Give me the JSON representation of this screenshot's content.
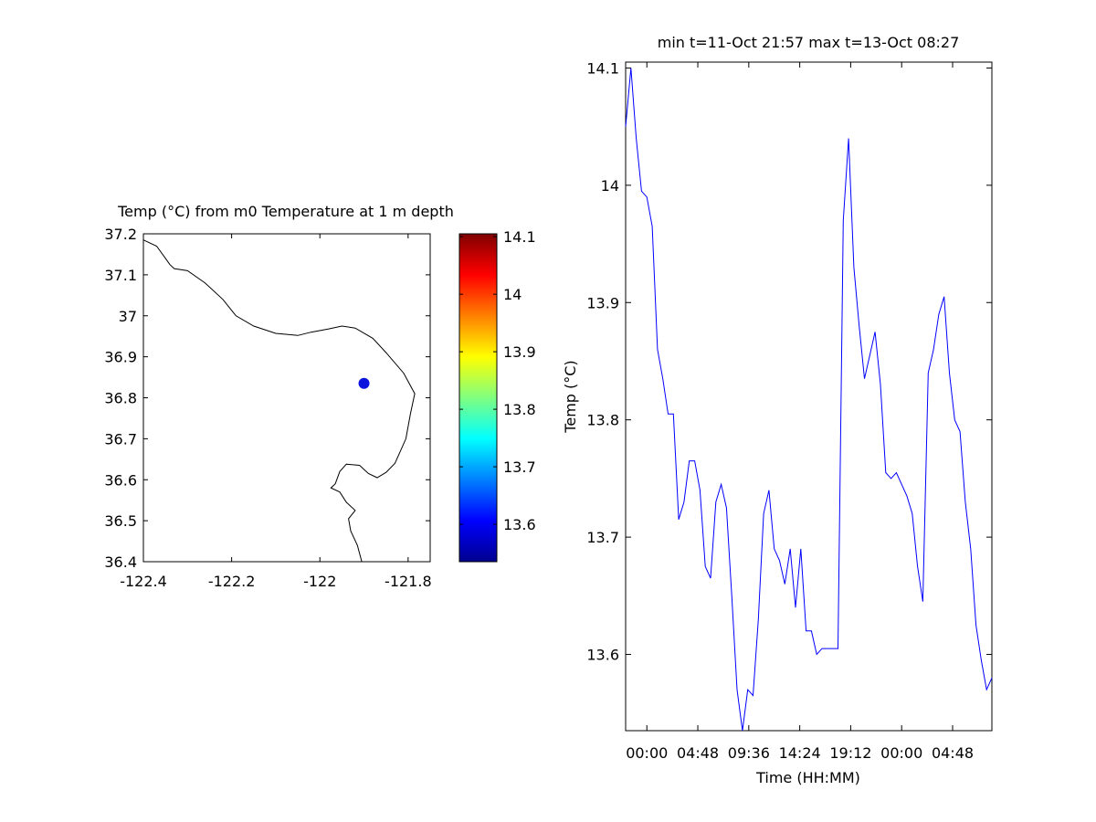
{
  "chart_data": [
    {
      "type": "scatter",
      "title": "Temp (°C) from m0 Temperature at 1 m depth",
      "xlim": [
        -122.4,
        -121.75
      ],
      "ylim": [
        36.4,
        37.2
      ],
      "x_ticks": [
        -122.4,
        -122.2,
        -122,
        -121.8
      ],
      "x_tick_labels": [
        "-122.4",
        "-122.2",
        "-122",
        "-121.8"
      ],
      "y_ticks": [
        36.4,
        36.5,
        36.6,
        36.7,
        36.8,
        36.9,
        37,
        37.1,
        37.2
      ],
      "y_tick_labels": [
        "36.4",
        "36.5",
        "36.6",
        "36.7",
        "36.8",
        "36.9",
        "37",
        "37.1",
        "37.2"
      ],
      "grid": false,
      "coastline": [
        [
          -122.4,
          37.185
        ],
        [
          -122.37,
          37.17
        ],
        [
          -122.35,
          37.14
        ],
        [
          -122.34,
          37.125
        ],
        [
          -122.33,
          37.115
        ],
        [
          -122.3,
          37.11
        ],
        [
          -122.26,
          37.08
        ],
        [
          -122.22,
          37.04
        ],
        [
          -122.19,
          37.0
        ],
        [
          -122.15,
          36.975
        ],
        [
          -122.1,
          36.957
        ],
        [
          -122.05,
          36.952
        ],
        [
          -122.02,
          36.96
        ],
        [
          -121.98,
          36.968
        ],
        [
          -121.95,
          36.975
        ],
        [
          -121.92,
          36.97
        ],
        [
          -121.88,
          36.945
        ],
        [
          -121.85,
          36.91
        ],
        [
          -121.81,
          36.86
        ],
        [
          -121.785,
          36.81
        ],
        [
          -121.795,
          36.76
        ],
        [
          -121.805,
          36.7
        ],
        [
          -121.83,
          36.64
        ],
        [
          -121.85,
          36.618
        ],
        [
          -121.87,
          36.605
        ],
        [
          -121.89,
          36.615
        ],
        [
          -121.91,
          36.635
        ],
        [
          -121.94,
          36.638
        ],
        [
          -121.955,
          36.62
        ],
        [
          -121.965,
          36.59
        ],
        [
          -121.975,
          36.58
        ],
        [
          -121.955,
          36.57
        ],
        [
          -121.94,
          36.545
        ],
        [
          -121.92,
          36.525
        ],
        [
          -121.935,
          36.505
        ],
        [
          -121.93,
          36.475
        ],
        [
          -121.915,
          36.44
        ],
        [
          -121.905,
          36.4
        ]
      ],
      "points": [
        {
          "x": -121.9,
          "y": 36.835,
          "value": 13.59
        }
      ],
      "colorbar": {
        "range": [
          13.535,
          14.105
        ],
        "ticks": [
          13.6,
          13.7,
          13.8,
          13.9,
          14,
          14.1
        ],
        "tick_labels": [
          "13.6",
          "13.7",
          "13.8",
          "13.9",
          "14",
          "14.1"
        ],
        "colormap": "jet"
      },
      "colors": {
        "marker": "#0a14dc",
        "coastline": "#000000"
      }
    },
    {
      "type": "line",
      "title": "min t=11-Oct 21:57 max t=13-Oct 08:27",
      "xlabel": "Time (HH:MM)",
      "ylabel": "Temp (°C)",
      "xlim": [
        "11-Oct 22:00",
        "13-Oct 08:30"
      ],
      "ylim": [
        13.535,
        14.105
      ],
      "x_ticks": [
        "12-Oct 00:00",
        "12-Oct 04:48",
        "12-Oct 09:36",
        "12-Oct 14:24",
        "12-Oct 19:12",
        "13-Oct 00:00",
        "13-Oct 04:48"
      ],
      "x_tick_labels": [
        "00:00",
        "04:48",
        "09:36",
        "14:24",
        "19:12",
        "00:00",
        "04:48"
      ],
      "y_ticks": [
        13.6,
        13.7,
        13.8,
        13.9,
        14,
        14.1
      ],
      "y_tick_labels": [
        "13.6",
        "13.7",
        "13.8",
        "13.9",
        "14",
        "14.1"
      ],
      "grid": false,
      "series": [
        {
          "color": "#0000ff",
          "x": [
            "11-Oct 22:00",
            "11-Oct 22:30",
            "11-Oct 23:00",
            "11-Oct 23:30",
            "12-Oct 00:00",
            "12-Oct 00:30",
            "12-Oct 01:00",
            "12-Oct 01:30",
            "12-Oct 02:00",
            "12-Oct 02:30",
            "12-Oct 03:00",
            "12-Oct 03:30",
            "12-Oct 04:00",
            "12-Oct 04:30",
            "12-Oct 05:00",
            "12-Oct 05:30",
            "12-Oct 06:00",
            "12-Oct 06:30",
            "12-Oct 07:00",
            "12-Oct 07:30",
            "12-Oct 08:00",
            "12-Oct 08:30",
            "12-Oct 09:00",
            "12-Oct 09:30",
            "12-Oct 10:00",
            "12-Oct 10:30",
            "12-Oct 11:00",
            "12-Oct 11:30",
            "12-Oct 12:00",
            "12-Oct 12:30",
            "12-Oct 13:00",
            "12-Oct 13:30",
            "12-Oct 14:00",
            "12-Oct 14:30",
            "12-Oct 15:00",
            "12-Oct 15:30",
            "12-Oct 16:00",
            "12-Oct 16:30",
            "12-Oct 17:00",
            "12-Oct 17:30",
            "12-Oct 18:00",
            "12-Oct 18:30",
            "12-Oct 19:00",
            "12-Oct 19:30",
            "12-Oct 20:00",
            "12-Oct 20:30",
            "12-Oct 21:00",
            "12-Oct 21:30",
            "12-Oct 22:00",
            "12-Oct 22:30",
            "12-Oct 23:00",
            "12-Oct 23:30",
            "13-Oct 00:00",
            "13-Oct 00:30",
            "13-Oct 01:00",
            "13-Oct 01:30",
            "13-Oct 02:00",
            "13-Oct 02:30",
            "13-Oct 03:00",
            "13-Oct 03:30",
            "13-Oct 04:00",
            "13-Oct 04:30",
            "13-Oct 05:00",
            "13-Oct 05:30",
            "13-Oct 06:00",
            "13-Oct 06:30",
            "13-Oct 07:00",
            "13-Oct 07:30",
            "13-Oct 08:00",
            "13-Oct 08:30"
          ],
          "y": [
            14.05,
            14.1,
            14.04,
            13.995,
            13.99,
            13.965,
            13.86,
            13.835,
            13.805,
            13.805,
            13.715,
            13.73,
            13.765,
            13.765,
            13.74,
            13.675,
            13.665,
            13.73,
            13.745,
            13.725,
            13.65,
            13.57,
            13.535,
            13.57,
            13.565,
            13.63,
            13.72,
            13.74,
            13.69,
            13.68,
            13.66,
            13.69,
            13.64,
            13.69,
            13.62,
            13.62,
            13.6,
            13.605,
            13.605,
            13.605,
            13.605,
            13.97,
            14.04,
            13.93,
            13.88,
            13.835,
            13.855,
            13.875,
            13.83,
            13.755,
            13.75,
            13.755,
            13.745,
            13.735,
            13.72,
            13.675,
            13.645,
            13.84,
            13.86,
            13.89,
            13.905,
            13.84,
            13.8,
            13.79,
            13.73,
            13.69,
            13.625,
            13.595,
            13.57,
            13.58
          ]
        }
      ]
    }
  ]
}
